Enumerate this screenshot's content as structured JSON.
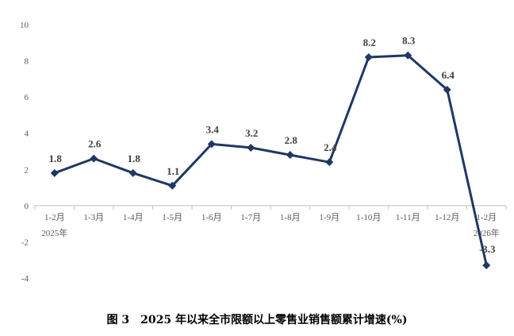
{
  "caption": "图 3　2025 年以来全市限额以上零售业销售额累计增速(%)",
  "colors": {
    "line": "#1f3864",
    "marker": "#1f3864",
    "zero_axis": "#bfbfbf",
    "text": "#595959"
  },
  "chart_data": {
    "type": "line",
    "title": "",
    "xlabel": "",
    "ylabel": "",
    "categories": [
      "1-2月",
      "1-3月",
      "1-4月",
      "1-5月",
      "1-6月",
      "1-7月",
      "1-8月",
      "1-9月",
      "1-10月",
      "1-11月",
      "1-12月",
      "1-2月"
    ],
    "category_sublabels": [
      "2025年",
      "",
      "",
      "",
      "",
      "",
      "",
      "",
      "",
      "",
      "",
      "2026年"
    ],
    "series": [
      {
        "values": [
          1.8,
          2.6,
          1.8,
          1.1,
          3.4,
          3.2,
          2.8,
          2.4,
          8.2,
          8.3,
          6.4,
          -3.3
        ]
      }
    ],
    "data_labels": [
      "1.8",
      "2.6",
      "1.8",
      "1.1",
      "3.4",
      "3.2",
      "2.8",
      "2.4",
      "8.2",
      "8.3",
      "6.4",
      "-3.3"
    ],
    "ylim": [
      -4,
      10
    ],
    "yticks": [
      -4,
      -2,
      0,
      2,
      4,
      6,
      8,
      10
    ],
    "grid": false,
    "marker": "diamond"
  }
}
